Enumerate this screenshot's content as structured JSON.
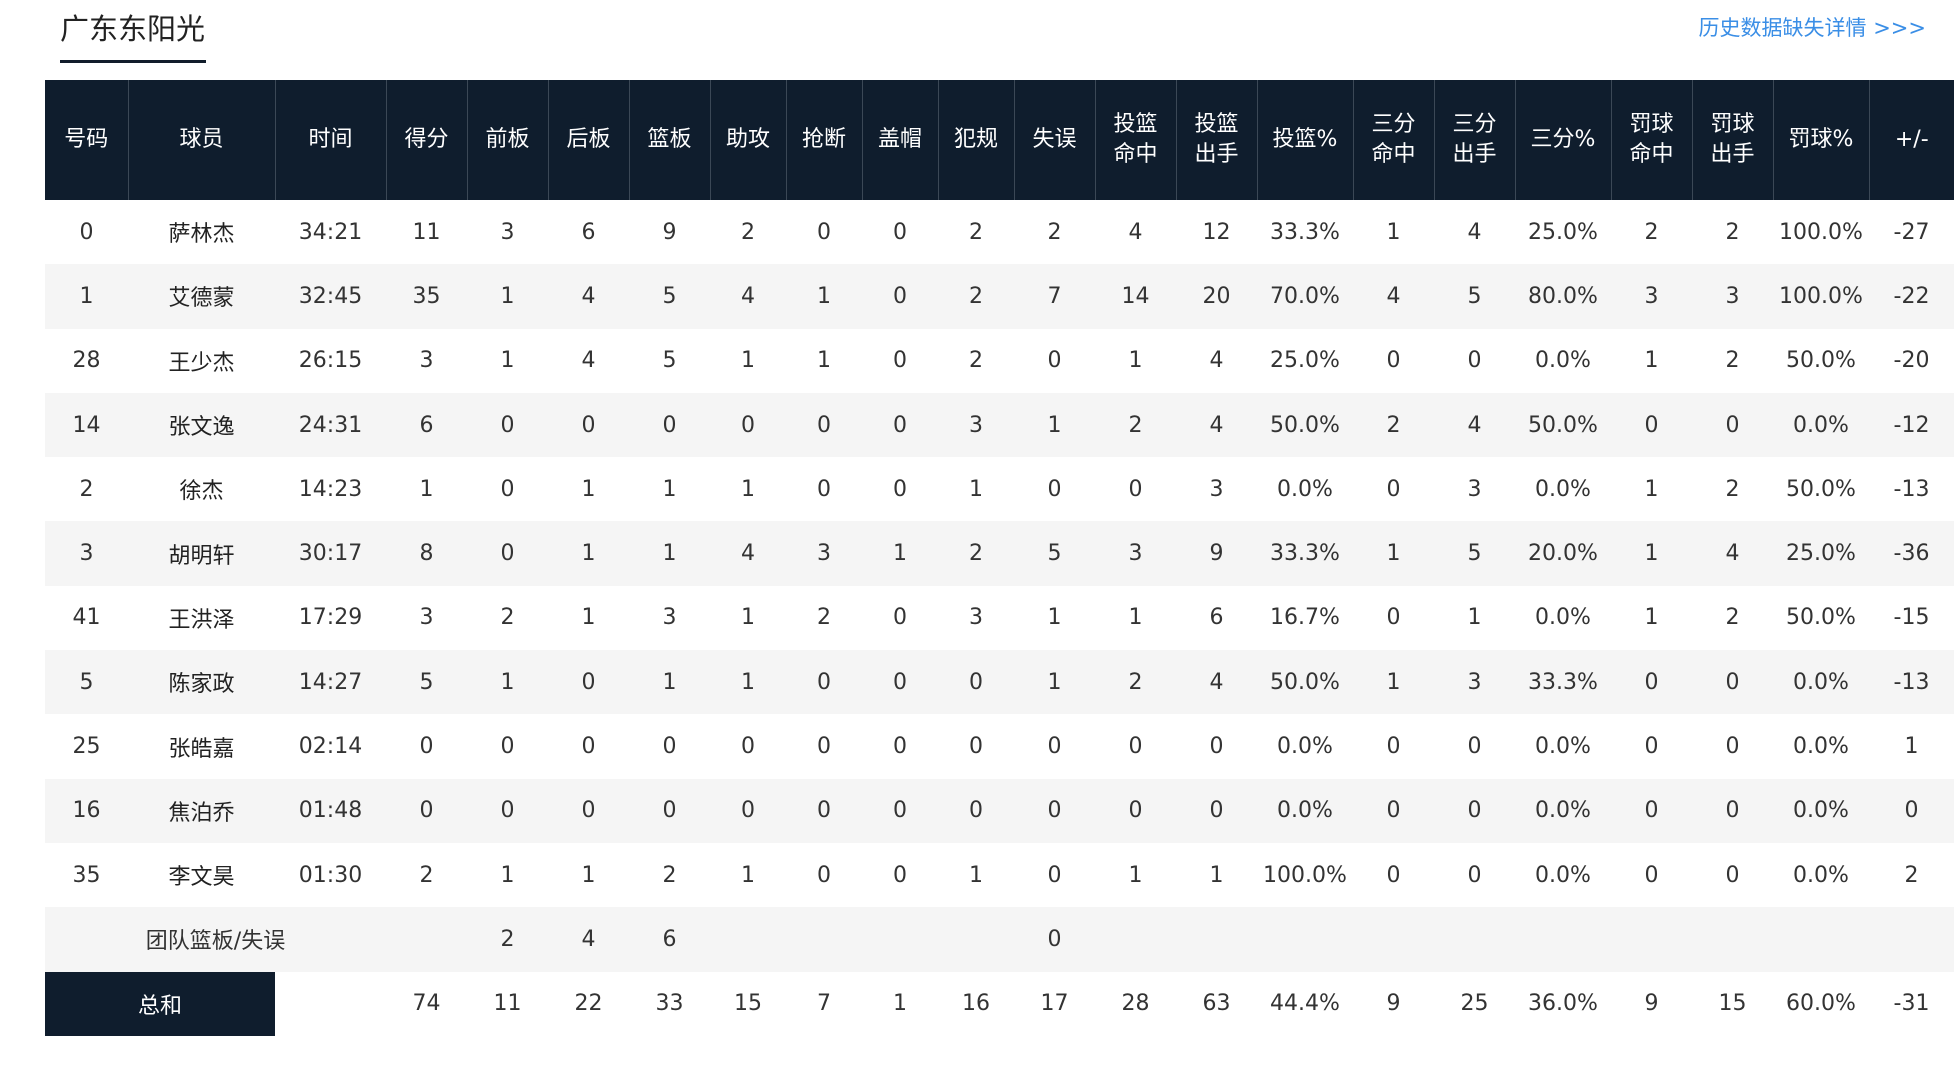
{
  "team_tab": "广东东阳光",
  "history_link": "历史数据缺失详情 >>>",
  "headers": {
    "number": "号码",
    "player": "球员",
    "time": "时间",
    "points": "得分",
    "oreb": "前板",
    "dreb": "后板",
    "reb": "篮板",
    "ast": "助攻",
    "stl": "抢断",
    "blk": "盖帽",
    "pf": "犯规",
    "tov": "失误",
    "fgm": [
      "投篮",
      "命中"
    ],
    "fga": [
      "投篮",
      "出手"
    ],
    "fg_pct": "投篮%",
    "tpm": [
      "三分",
      "命中"
    ],
    "tpa": [
      "三分",
      "出手"
    ],
    "tp_pct": "三分%",
    "ftm": [
      "罚球",
      "命中"
    ],
    "fta": [
      "罚球",
      "出手"
    ],
    "ft_pct": "罚球%",
    "plus_minus": "+/-"
  },
  "players": [
    [
      "0",
      "萨林杰",
      "34:21",
      "11",
      "3",
      "6",
      "9",
      "2",
      "0",
      "0",
      "2",
      "2",
      "4",
      "12",
      "33.3%",
      "1",
      "4",
      "25.0%",
      "2",
      "2",
      "100.0%",
      "-27"
    ],
    [
      "1",
      "艾德蒙",
      "32:45",
      "35",
      "1",
      "4",
      "5",
      "4",
      "1",
      "0",
      "2",
      "7",
      "14",
      "20",
      "70.0%",
      "4",
      "5",
      "80.0%",
      "3",
      "3",
      "100.0%",
      "-22"
    ],
    [
      "28",
      "王少杰",
      "26:15",
      "3",
      "1",
      "4",
      "5",
      "1",
      "1",
      "0",
      "2",
      "0",
      "1",
      "4",
      "25.0%",
      "0",
      "0",
      "0.0%",
      "1",
      "2",
      "50.0%",
      "-20"
    ],
    [
      "14",
      "张文逸",
      "24:31",
      "6",
      "0",
      "0",
      "0",
      "0",
      "0",
      "0",
      "3",
      "1",
      "2",
      "4",
      "50.0%",
      "2",
      "4",
      "50.0%",
      "0",
      "0",
      "0.0%",
      "-12"
    ],
    [
      "2",
      "徐杰",
      "14:23",
      "1",
      "0",
      "1",
      "1",
      "1",
      "0",
      "0",
      "1",
      "0",
      "0",
      "3",
      "0.0%",
      "0",
      "3",
      "0.0%",
      "1",
      "2",
      "50.0%",
      "-13"
    ],
    [
      "3",
      "胡明轩",
      "30:17",
      "8",
      "0",
      "1",
      "1",
      "4",
      "3",
      "1",
      "2",
      "5",
      "3",
      "9",
      "33.3%",
      "1",
      "5",
      "20.0%",
      "1",
      "4",
      "25.0%",
      "-36"
    ],
    [
      "41",
      "王洪泽",
      "17:29",
      "3",
      "2",
      "1",
      "3",
      "1",
      "2",
      "0",
      "3",
      "1",
      "1",
      "6",
      "16.7%",
      "0",
      "1",
      "0.0%",
      "1",
      "2",
      "50.0%",
      "-15"
    ],
    [
      "5",
      "陈家政",
      "14:27",
      "5",
      "1",
      "0",
      "1",
      "1",
      "0",
      "0",
      "0",
      "1",
      "2",
      "4",
      "50.0%",
      "1",
      "3",
      "33.3%",
      "0",
      "0",
      "0.0%",
      "-13"
    ],
    [
      "25",
      "张皓嘉",
      "02:14",
      "0",
      "0",
      "0",
      "0",
      "0",
      "0",
      "0",
      "0",
      "0",
      "0",
      "0",
      "0.0%",
      "0",
      "0",
      "0.0%",
      "0",
      "0",
      "0.0%",
      "1"
    ],
    [
      "16",
      "焦泊乔",
      "01:48",
      "0",
      "0",
      "0",
      "0",
      "0",
      "0",
      "0",
      "0",
      "0",
      "0",
      "0",
      "0.0%",
      "0",
      "0",
      "0.0%",
      "0",
      "0",
      "0.0%",
      "0"
    ],
    [
      "35",
      "李文昊",
      "01:30",
      "2",
      "1",
      "1",
      "2",
      "1",
      "0",
      "0",
      "1",
      "0",
      "1",
      "1",
      "100.0%",
      "0",
      "0",
      "0.0%",
      "0",
      "0",
      "0.0%",
      "2"
    ]
  ],
  "team_row": {
    "label": "团队篮板/失误",
    "oreb": "2",
    "dreb": "4",
    "reb": "6",
    "tov": "0"
  },
  "total_row": {
    "label": "总和",
    "values": [
      "74",
      "11",
      "22",
      "33",
      "15",
      "7",
      "1",
      "16",
      "17",
      "28",
      "63",
      "44.4%",
      "9",
      "25",
      "36.0%",
      "9",
      "15",
      "60.0%",
      "-31"
    ]
  }
}
